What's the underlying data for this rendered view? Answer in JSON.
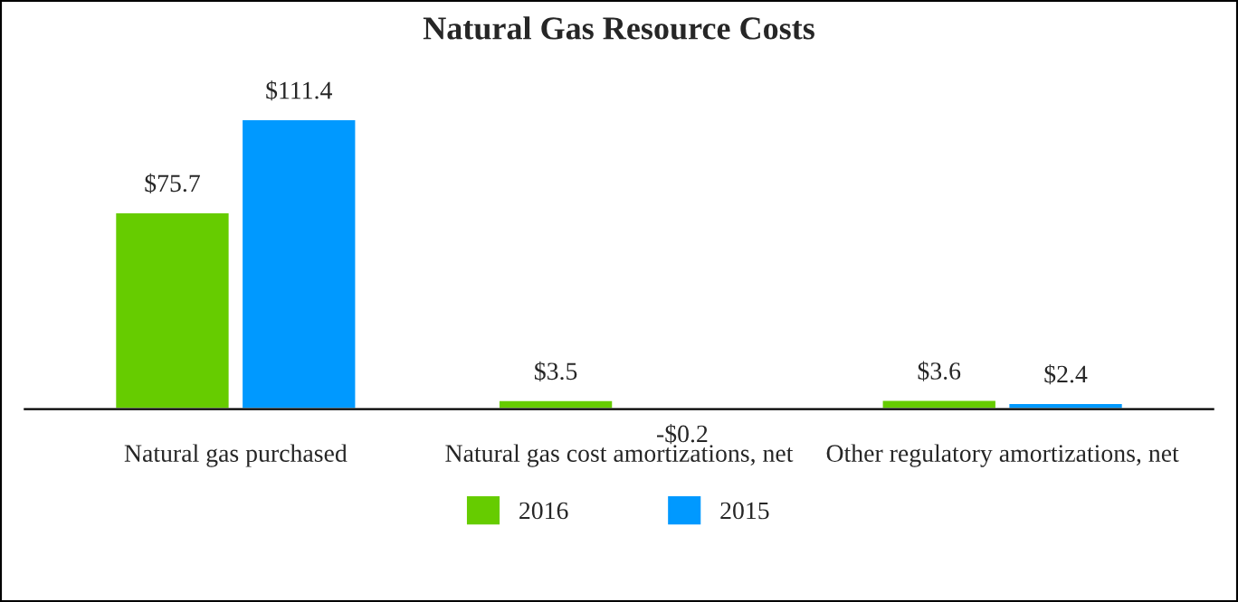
{
  "chart_data": {
    "type": "bar",
    "title": "Natural Gas Resource Costs",
    "categories": [
      "Natural gas purchased",
      "Natural gas cost amortizations, net",
      "Other regulatory amortizations, net"
    ],
    "series": [
      {
        "name": "2016",
        "color": "#66cc00",
        "values": [
          75.7,
          3.5,
          3.6
        ],
        "value_labels": [
          "$75.7",
          "$3.5",
          "$3.6"
        ]
      },
      {
        "name": "2015",
        "color": "#0099ff",
        "values": [
          111.4,
          -0.2,
          2.4
        ],
        "value_labels": [
          "$111.4",
          "-$0.2",
          "$2.4"
        ]
      }
    ],
    "legend": "bottom",
    "grid": false
  }
}
